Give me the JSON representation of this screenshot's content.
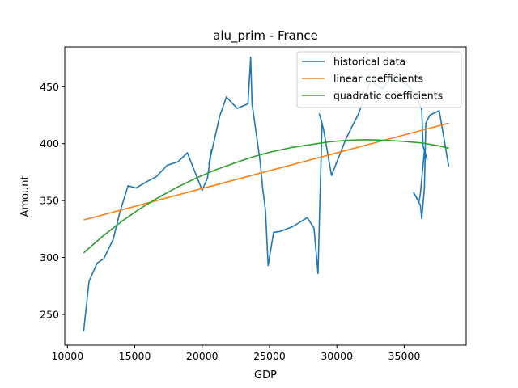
{
  "chart_data": {
    "type": "line",
    "title": "alu_prim - France",
    "xlabel": "GDP",
    "ylabel": "Amount",
    "xlim": [
      9800,
      39600
    ],
    "ylim": [
      223,
      485
    ],
    "x_ticks": [
      10000,
      15000,
      20000,
      25000,
      30000,
      35000
    ],
    "y_ticks": [
      250,
      300,
      350,
      400,
      450
    ],
    "grid": false,
    "legend_position": "upper right",
    "series": [
      {
        "name": "historical data",
        "color": "#1f77b4",
        "x": [
          11200,
          11600,
          12200,
          12700,
          13400,
          13900,
          14500,
          15100,
          15800,
          16600,
          17400,
          18200,
          18900,
          20000,
          20400,
          20700,
          20500,
          21300,
          21800,
          22600,
          23400,
          23600,
          23700,
          24300,
          24500,
          24700,
          24900,
          25300,
          25800,
          26700,
          27800,
          28300,
          28600,
          28700,
          28900,
          28700,
          29000,
          29600,
          30000,
          30700,
          31600,
          32500,
          33400,
          34100,
          34600,
          35200,
          35900,
          36300,
          36400,
          36700,
          36500,
          36200,
          36100,
          35700,
          36200,
          36300,
          36500,
          36600,
          36900,
          37600,
          38300
        ],
        "y": [
          235,
          279,
          295,
          299,
          316,
          340,
          363,
          361,
          366,
          371,
          381,
          384,
          392,
          359,
          370,
          395,
          382,
          424,
          441,
          431,
          435,
          476,
          435,
          385,
          360,
          341,
          293,
          322,
          323,
          327,
          335,
          326,
          286,
          333,
          418,
          426,
          413,
          372,
          384,
          405,
          426,
          455,
          448,
          461,
          456,
          452,
          442,
          430,
          398,
          386,
          394,
          356,
          349,
          357,
          346,
          334,
          361,
          418,
          425,
          429,
          380
        ]
      },
      {
        "name": "linear coefficients",
        "color": "#ff7f0e",
        "x": [
          11200,
          38300
        ],
        "y": [
          333,
          418
        ]
      },
      {
        "name": "quadratic coefficients",
        "color": "#2ca02c",
        "x": [
          11200,
          12600,
          14000,
          15400,
          16800,
          18200,
          19600,
          21000,
          22400,
          23800,
          25200,
          26600,
          28000,
          29400,
          30800,
          32200,
          33600,
          35000,
          36400,
          37800,
          38300
        ],
        "y": [
          304,
          318.5,
          331.5,
          343,
          353,
          362,
          370,
          377,
          383,
          388.5,
          393,
          396.5,
          399,
          401.5,
          403,
          403.5,
          403,
          402,
          400.5,
          397.5,
          396
        ]
      }
    ]
  }
}
